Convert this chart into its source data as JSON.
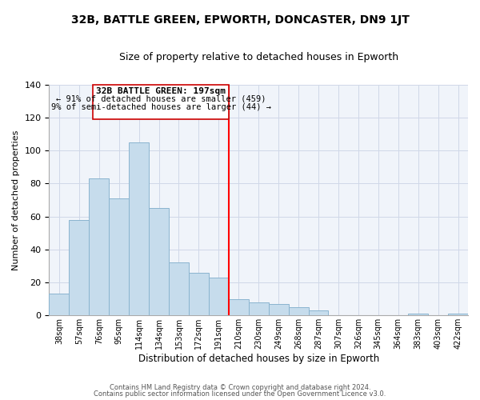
{
  "title": "32B, BATTLE GREEN, EPWORTH, DONCASTER, DN9 1JT",
  "subtitle": "Size of property relative to detached houses in Epworth",
  "xlabel": "Distribution of detached houses by size in Epworth",
  "ylabel": "Number of detached properties",
  "bar_labels": [
    "38sqm",
    "57sqm",
    "76sqm",
    "95sqm",
    "114sqm",
    "134sqm",
    "153sqm",
    "172sqm",
    "191sqm",
    "210sqm",
    "230sqm",
    "249sqm",
    "268sqm",
    "287sqm",
    "307sqm",
    "326sqm",
    "345sqm",
    "364sqm",
    "383sqm",
    "403sqm",
    "422sqm"
  ],
  "bar_values": [
    13,
    58,
    83,
    71,
    105,
    65,
    32,
    26,
    23,
    10,
    8,
    7,
    5,
    3,
    0,
    0,
    0,
    0,
    1,
    0,
    1
  ],
  "bar_color": "#c6dcec",
  "bar_edge_color": "#8ab4cf",
  "vline_x_idx": 8.5,
  "vline_color": "red",
  "annotation_title": "32B BATTLE GREEN: 197sqm",
  "annotation_line1": "← 91% of detached houses are smaller (459)",
  "annotation_line2": "9% of semi-detached houses are larger (44) →",
  "annotation_box_color": "white",
  "annotation_box_edge": "#cc0000",
  "ylim": [
    0,
    140
  ],
  "yticks": [
    0,
    20,
    40,
    60,
    80,
    100,
    120,
    140
  ],
  "footer1": "Contains HM Land Registry data © Crown copyright and database right 2024.",
  "footer2": "Contains public sector information licensed under the Open Government Licence v3.0."
}
